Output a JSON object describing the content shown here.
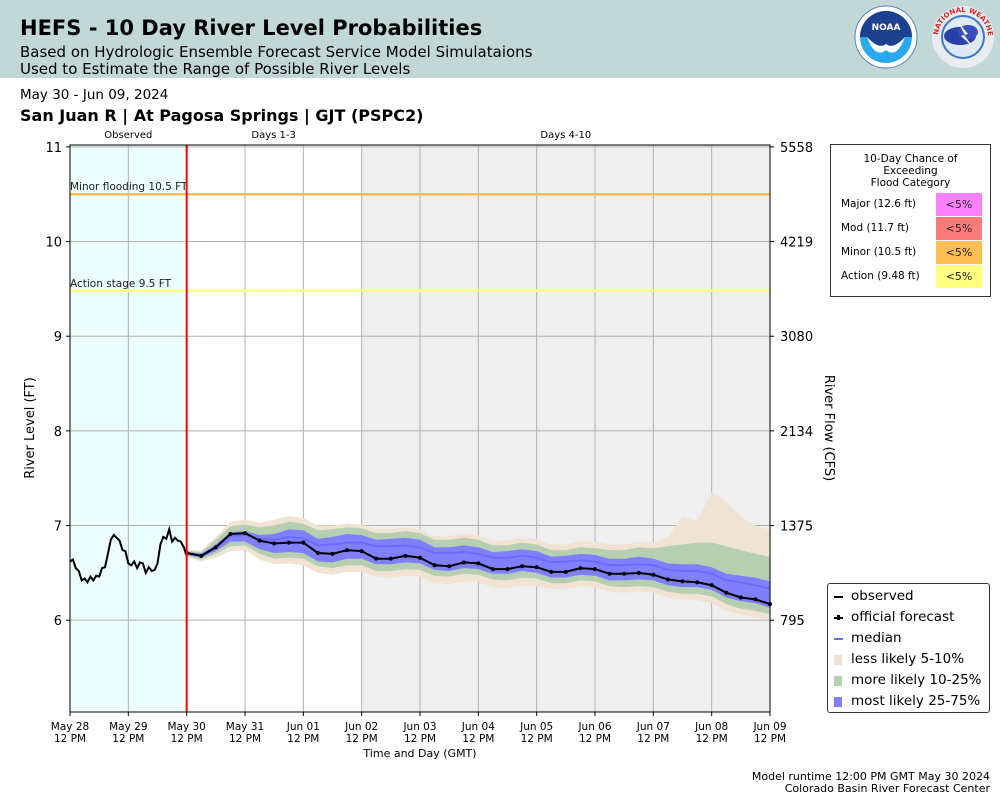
{
  "header": {
    "title": "HEFS - 10 Day River Level Probabilities",
    "subtitle_line1": "Based on Hydrologic Ensemble Forecast Service Model Simulataions",
    "subtitle_line2": "Used to Estimate the Range of Possible River Levels",
    "logos": [
      {
        "name": "noaa-logo",
        "text": "NOAA"
      },
      {
        "name": "nws-logo",
        "text": "NATIONAL WEATHER SERVICE"
      }
    ]
  },
  "date_range": "May 30 - Jun 09, 2024",
  "station": "San Juan R | At Pagosa Springs | GJT (PSPC2)",
  "flood_probability_table": {
    "title_lines": [
      "10-Day Chance of",
      "Exceeding",
      "Flood Category"
    ],
    "rows": [
      {
        "label": "Major (12.6 ft)",
        "value": "<5%",
        "color": "#ff80ff"
      },
      {
        "label": "Mod (11.7 ft)",
        "value": "<5%",
        "color": "#ff7b7b"
      },
      {
        "label": "Minor (10.5 ft)",
        "value": "<5%",
        "color": "#ffbe55"
      },
      {
        "label": "Action (9.48 ft)",
        "value": "<5%",
        "color": "#ffff80"
      }
    ]
  },
  "legend": {
    "items": [
      {
        "label": "observed",
        "type": "line",
        "color": "#000000"
      },
      {
        "label": "official forecast",
        "type": "line-marker",
        "color": "#000000"
      },
      {
        "label": "median",
        "type": "line",
        "color": "#6b6bff"
      },
      {
        "label": "less likely 5-10%",
        "type": "patch",
        "color": "#f0e3d4"
      },
      {
        "label": "more likely 10-25%",
        "type": "patch",
        "color": "#b5cfb0"
      },
      {
        "label": "most likely 25-75%",
        "type": "patch",
        "color": "#8080ff"
      }
    ]
  },
  "footer": {
    "runtime": "Model runtime 12:00 PM GMT May 30 2024",
    "center": "Colorado Basin River Forecast Center"
  },
  "chart_data": {
    "type": "area",
    "title": "",
    "xlabel": "Time and Day (GMT)",
    "ylabel": "River Level (FT)",
    "ylabel_right": "River Flow (CFS)",
    "x_unit": "days since May 28 12 PM",
    "xlim": [
      0,
      12
    ],
    "ylim": [
      5.03,
      11.02
    ],
    "grid": true,
    "legend_position": "lower-right",
    "x_ticks": [
      {
        "pos": 0,
        "label": [
          "May 28",
          "12 PM"
        ]
      },
      {
        "pos": 1,
        "label": [
          "May 29",
          "12 PM"
        ]
      },
      {
        "pos": 2,
        "label": [
          "May 30",
          "12 PM"
        ]
      },
      {
        "pos": 3,
        "label": [
          "May 31",
          "12 PM"
        ]
      },
      {
        "pos": 4,
        "label": [
          "Jun 01",
          "12 PM"
        ]
      },
      {
        "pos": 5,
        "label": [
          "Jun 02",
          "12 PM"
        ]
      },
      {
        "pos": 6,
        "label": [
          "Jun 03",
          "12 PM"
        ]
      },
      {
        "pos": 7,
        "label": [
          "Jun 04",
          "12 PM"
        ]
      },
      {
        "pos": 8,
        "label": [
          "Jun 05",
          "12 PM"
        ]
      },
      {
        "pos": 9,
        "label": [
          "Jun 06",
          "12 PM"
        ]
      },
      {
        "pos": 10,
        "label": [
          "Jun 07",
          "12 PM"
        ]
      },
      {
        "pos": 11,
        "label": [
          "Jun 08",
          "12 PM"
        ]
      },
      {
        "pos": 12,
        "label": [
          "Jun 09",
          "12 PM"
        ]
      }
    ],
    "y_ticks_left": [
      6,
      7,
      8,
      9,
      10,
      11
    ],
    "y_ticks_right": [
      {
        "stage": 6,
        "label": "795"
      },
      {
        "stage": 7,
        "label": "1375"
      },
      {
        "stage": 8,
        "label": "2134"
      },
      {
        "stage": 9,
        "label": "3080"
      },
      {
        "stage": 10,
        "label": "4219"
      },
      {
        "stage": 11,
        "label": "5558"
      }
    ],
    "periods": [
      {
        "label": "Observed",
        "start": 0,
        "end": 2,
        "color": "#ebfdfd"
      },
      {
        "label": "Days 1-3",
        "start": 2,
        "end": 5,
        "color": "#ffffff"
      },
      {
        "label": "Days 4-10",
        "start": 5,
        "end": 12,
        "color": "#efefef"
      }
    ],
    "forecast_start": 2,
    "thresholds": [
      {
        "label": "Minor flooding 10.5 FT",
        "value": 10.5,
        "color": "#ffbe55"
      },
      {
        "label": "Action stage 9.5 FT",
        "value": 9.48,
        "color": "#ffff80"
      }
    ],
    "observed": {
      "x": [
        0,
        0.05,
        0.1,
        0.15,
        0.2,
        0.25,
        0.3,
        0.35,
        0.4,
        0.45,
        0.5,
        0.55,
        0.6,
        0.65,
        0.7,
        0.75,
        0.8,
        0.85,
        0.9,
        0.95,
        1.0,
        1.05,
        1.1,
        1.15,
        1.2,
        1.25,
        1.3,
        1.35,
        1.4,
        1.45,
        1.5,
        1.55,
        1.6,
        1.65,
        1.7,
        1.75,
        1.8,
        1.85,
        1.9,
        1.95,
        2.0
      ],
      "values": [
        6.62,
        6.64,
        6.55,
        6.52,
        6.42,
        6.44,
        6.4,
        6.46,
        6.42,
        6.47,
        6.46,
        6.55,
        6.56,
        6.7,
        6.85,
        6.9,
        6.87,
        6.84,
        6.74,
        6.73,
        6.6,
        6.58,
        6.62,
        6.55,
        6.61,
        6.6,
        6.5,
        6.56,
        6.52,
        6.53,
        6.6,
        6.8,
        6.88,
        6.86,
        6.96,
        6.83,
        6.87,
        6.84,
        6.83,
        6.77,
        6.68
      ]
    },
    "forecast": {
      "x": [
        2.0,
        2.25,
        2.5,
        2.75,
        3.0,
        3.25,
        3.5,
        3.75,
        4.0,
        4.25,
        4.5,
        4.75,
        5.0,
        5.25,
        5.5,
        5.75,
        6.0,
        6.25,
        6.5,
        6.75,
        7.0,
        7.25,
        7.5,
        7.75,
        8.0,
        8.25,
        8.5,
        8.75,
        9.0,
        9.25,
        9.5,
        9.75,
        10.0,
        10.25,
        10.5,
        10.75,
        11.0,
        11.25,
        11.5,
        11.75,
        12.0
      ],
      "official": [
        6.71,
        6.68,
        6.77,
        6.91,
        6.92,
        6.84,
        6.81,
        6.82,
        6.82,
        6.71,
        6.7,
        6.74,
        6.73,
        6.65,
        6.65,
        6.68,
        6.66,
        6.58,
        6.57,
        6.61,
        6.6,
        6.54,
        6.54,
        6.57,
        6.56,
        6.51,
        6.51,
        6.55,
        6.54,
        6.49,
        6.49,
        6.5,
        6.48,
        6.43,
        6.41,
        6.4,
        6.37,
        6.29,
        6.24,
        6.22,
        6.17
      ],
      "median": [
        6.71,
        6.69,
        6.77,
        6.89,
        6.9,
        6.86,
        6.85,
        6.88,
        6.86,
        6.79,
        6.8,
        6.82,
        6.82,
        6.78,
        6.78,
        6.79,
        6.77,
        6.71,
        6.71,
        6.72,
        6.7,
        6.66,
        6.66,
        6.68,
        6.66,
        6.61,
        6.62,
        6.63,
        6.62,
        6.58,
        6.58,
        6.59,
        6.58,
        6.53,
        6.52,
        6.52,
        6.49,
        6.42,
        6.4,
        6.37,
        6.33
      ],
      "p25": [
        6.69,
        6.66,
        6.73,
        6.83,
        6.83,
        6.75,
        6.71,
        6.72,
        6.71,
        6.62,
        6.61,
        6.65,
        6.65,
        6.59,
        6.59,
        6.61,
        6.6,
        6.53,
        6.52,
        6.55,
        6.54,
        6.49,
        6.49,
        6.52,
        6.5,
        6.45,
        6.45,
        6.48,
        6.47,
        6.42,
        6.42,
        6.43,
        6.42,
        6.37,
        6.35,
        6.35,
        6.32,
        6.24,
        6.2,
        6.18,
        6.13
      ],
      "p75": [
        6.72,
        6.7,
        6.8,
        6.93,
        6.94,
        6.9,
        6.91,
        6.96,
        6.95,
        6.86,
        6.88,
        6.91,
        6.9,
        6.85,
        6.86,
        6.87,
        6.85,
        6.77,
        6.77,
        6.79,
        6.77,
        6.72,
        6.73,
        6.75,
        6.73,
        6.67,
        6.68,
        6.7,
        6.69,
        6.65,
        6.65,
        6.67,
        6.65,
        6.6,
        6.59,
        6.59,
        6.56,
        6.49,
        6.47,
        6.45,
        6.41
      ],
      "p10": [
        6.68,
        6.64,
        6.7,
        6.78,
        6.79,
        6.7,
        6.65,
        6.66,
        6.65,
        6.57,
        6.55,
        6.58,
        6.58,
        6.52,
        6.52,
        6.54,
        6.53,
        6.47,
        6.46,
        6.49,
        6.48,
        6.43,
        6.42,
        6.45,
        6.44,
        6.39,
        6.39,
        6.42,
        6.41,
        6.36,
        6.35,
        6.36,
        6.35,
        6.3,
        6.28,
        6.28,
        6.25,
        6.17,
        6.12,
        6.1,
        6.06
      ],
      "p90": [
        6.73,
        6.72,
        6.85,
        6.99,
        7.01,
        6.98,
        7.0,
        7.04,
        7.02,
        6.95,
        6.96,
        6.98,
        6.97,
        6.92,
        6.92,
        6.94,
        6.92,
        6.85,
        6.85,
        6.87,
        6.85,
        6.79,
        6.79,
        6.82,
        6.8,
        6.74,
        6.74,
        6.77,
        6.76,
        6.74,
        6.74,
        6.77,
        6.76,
        6.78,
        6.8,
        6.82,
        6.82,
        6.78,
        6.74,
        6.7,
        6.67
      ],
      "p05": [
        6.66,
        6.62,
        6.66,
        6.73,
        6.74,
        6.64,
        6.59,
        6.6,
        6.58,
        6.5,
        6.48,
        6.51,
        6.51,
        6.46,
        6.45,
        6.47,
        6.46,
        6.39,
        6.38,
        6.41,
        6.4,
        6.35,
        6.34,
        6.37,
        6.36,
        6.33,
        6.33,
        6.36,
        6.35,
        6.3,
        6.29,
        6.3,
        6.29,
        6.24,
        6.22,
        6.21,
        6.18,
        6.1,
        6.06,
        6.03,
        6.0
      ],
      "p95": [
        6.74,
        6.74,
        6.88,
        7.04,
        7.06,
        7.03,
        7.06,
        7.1,
        7.08,
        7.0,
        7.0,
        7.02,
        7.01,
        6.96,
        6.96,
        6.98,
        6.96,
        6.89,
        6.89,
        6.91,
        6.9,
        6.84,
        6.84,
        6.87,
        6.86,
        6.8,
        6.8,
        6.84,
        6.83,
        6.8,
        6.8,
        6.83,
        6.82,
        6.88,
        7.09,
        7.05,
        7.35,
        7.25,
        7.1,
        7.0,
        6.95
      ]
    }
  }
}
